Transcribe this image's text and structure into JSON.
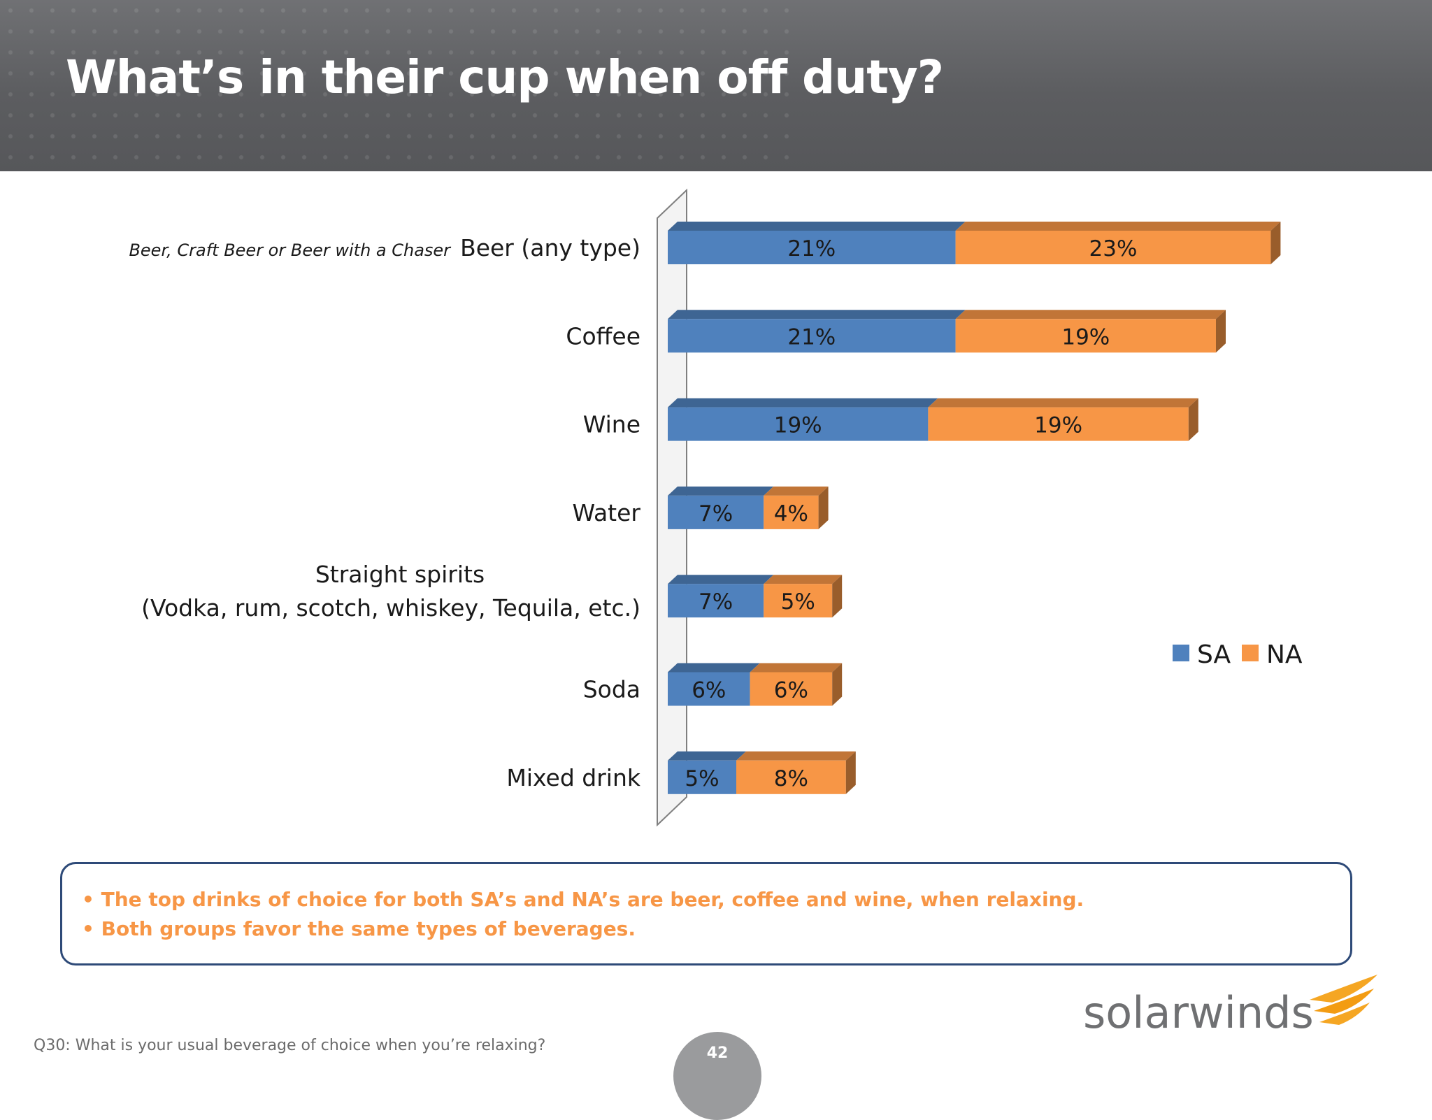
{
  "slide": {
    "title": "What’s in their cup when off duty?",
    "bullets": [
      "• The top drinks of choice for both SA’s and NA’s are beer, coffee and wine, when relaxing.",
      "• Both groups favor the same types of beverages."
    ],
    "footnote": "Q30: What is your usual beverage of choice when you’re relaxing?",
    "page_number": "42",
    "logo_text": "solarwinds"
  },
  "colors": {
    "header": "#5c5d60",
    "sa": "#4f81bd",
    "na": "#f79646",
    "callout_border": "#2e4a78",
    "callout_text": "#f79646"
  },
  "chart_data": {
    "type": "bar",
    "orientation": "horizontal",
    "stacked": true,
    "style": "3d",
    "categories": [
      "Beer (any type)",
      "Coffee",
      "Wine",
      "Water",
      "Straight spirits\n(Vodka, rum, scotch, whiskey, Tequila, etc.)",
      "Soda",
      "Mixed drink"
    ],
    "category_notes": [
      "Beer, Craft Beer or Beer with a Chaser",
      "",
      "",
      "",
      "",
      "",
      ""
    ],
    "series": [
      {
        "name": "SA",
        "values": [
          21,
          21,
          19,
          7,
          7,
          6,
          5
        ],
        "labels": [
          "21%",
          "21%",
          "19%",
          "7%",
          "7%",
          "6%",
          "5%"
        ]
      },
      {
        "name": "NA",
        "values": [
          23,
          19,
          19,
          4,
          5,
          6,
          8
        ],
        "labels": [
          "23%",
          "19%",
          "19%",
          "4%",
          "5%",
          "6%",
          "8%"
        ]
      }
    ],
    "value_unit": "%",
    "legend_position": "right",
    "grid": false,
    "title": "",
    "xlabel": "",
    "ylabel": ""
  }
}
